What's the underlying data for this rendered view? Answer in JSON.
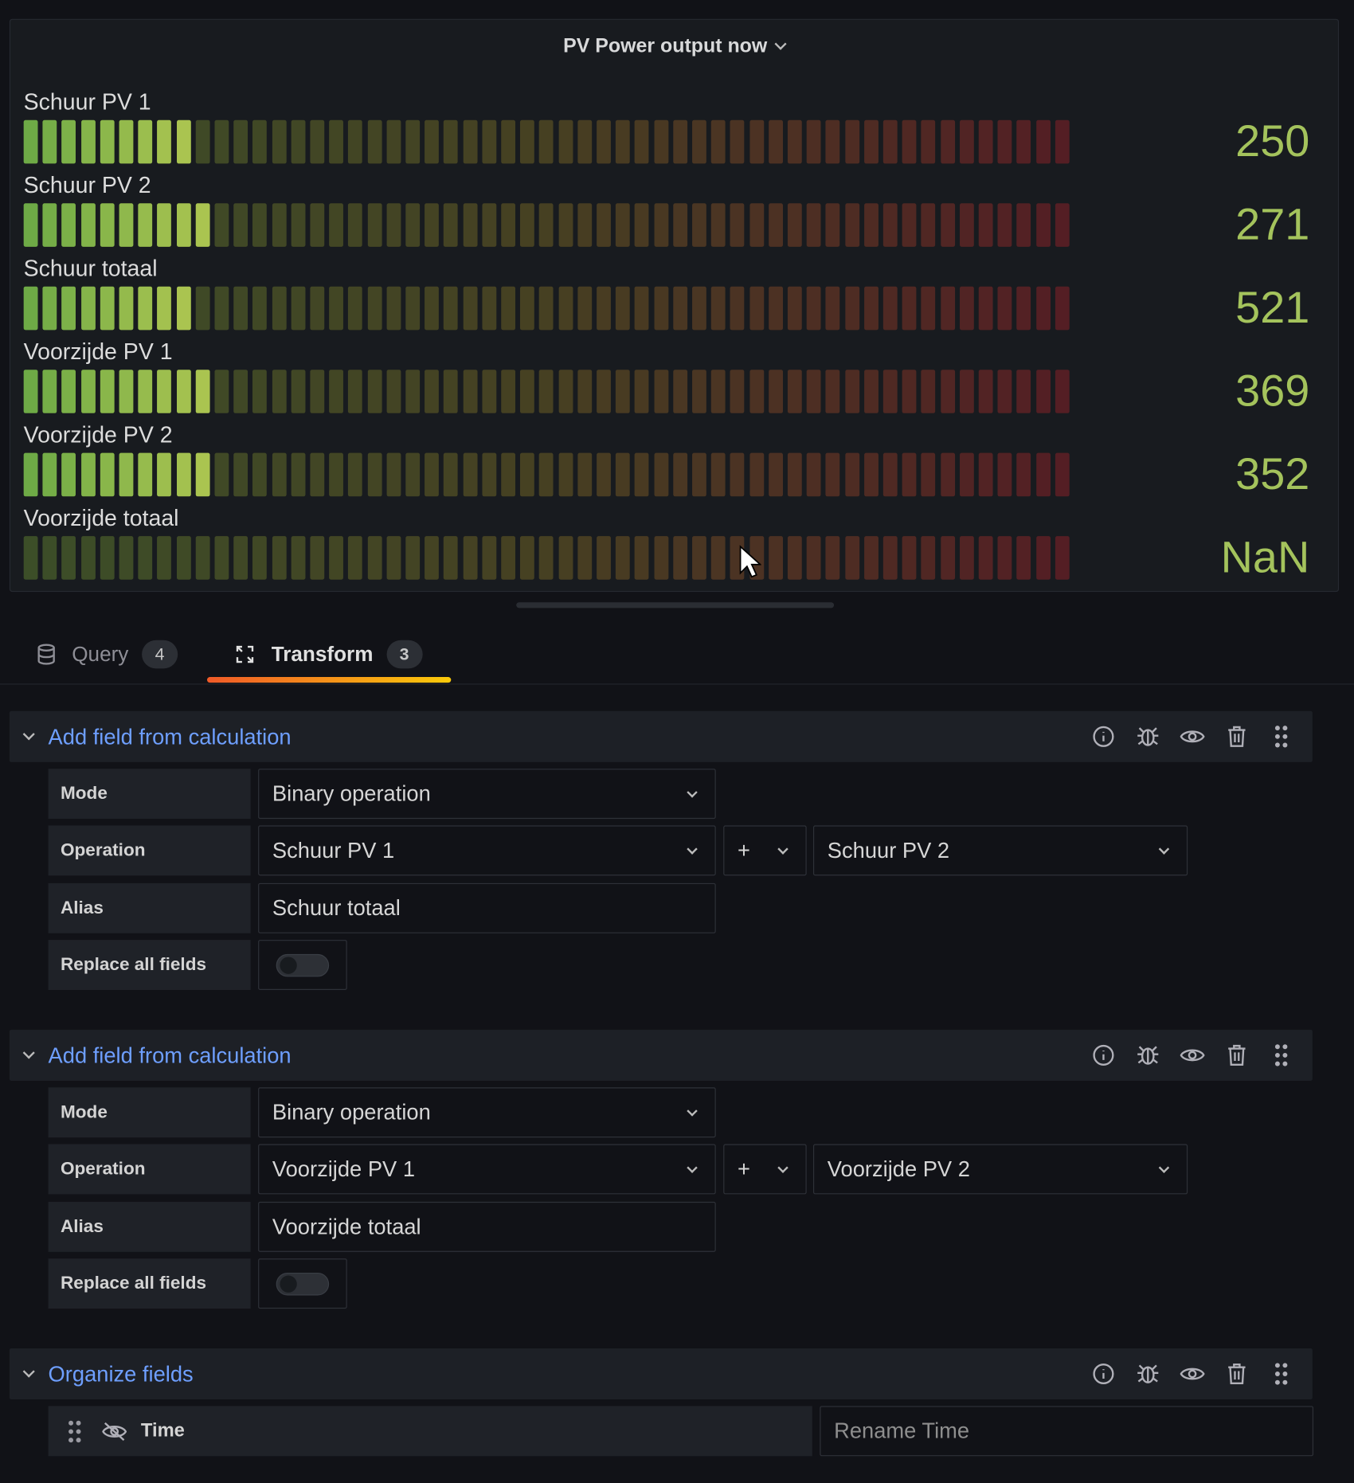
{
  "panel": {
    "title": "PV Power output now",
    "gauges": [
      {
        "name": "Schuur PV 1",
        "value": "250",
        "lit": 9
      },
      {
        "name": "Schuur PV 2",
        "value": "271",
        "lit": 10
      },
      {
        "name": "Schuur totaal",
        "value": "521",
        "lit": 9
      },
      {
        "name": "Voorzijde PV 1",
        "value": "369",
        "lit": 10
      },
      {
        "name": "Voorzijde PV 2",
        "value": "352",
        "lit": 10
      },
      {
        "name": "Voorzijde totaal",
        "value": "NaN",
        "lit": 0
      }
    ],
    "segments": 55
  },
  "tabs": [
    {
      "label": "Query",
      "count": "4"
    },
    {
      "label": "Transform",
      "count": "3"
    }
  ],
  "transforms": [
    {
      "title": "Add field from calculation",
      "mode_label": "Mode",
      "mode_value": "Binary operation",
      "operation_label": "Operation",
      "left": "Schuur PV 1",
      "operator": "+",
      "right": "Schuur PV 2",
      "alias_label": "Alias",
      "alias_value": "Schuur totaal",
      "replace_label": "Replace all fields"
    },
    {
      "title": "Add field from calculation",
      "mode_label": "Mode",
      "mode_value": "Binary operation",
      "operation_label": "Operation",
      "left": "Voorzijde PV 1",
      "operator": "+",
      "right": "Voorzijde PV 2",
      "alias_label": "Alias",
      "alias_value": "Voorzijde totaal",
      "replace_label": "Replace all fields"
    }
  ],
  "organize": {
    "title": "Organize fields",
    "fields": [
      {
        "name": "Time",
        "placeholder": "Rename Time"
      }
    ]
  }
}
